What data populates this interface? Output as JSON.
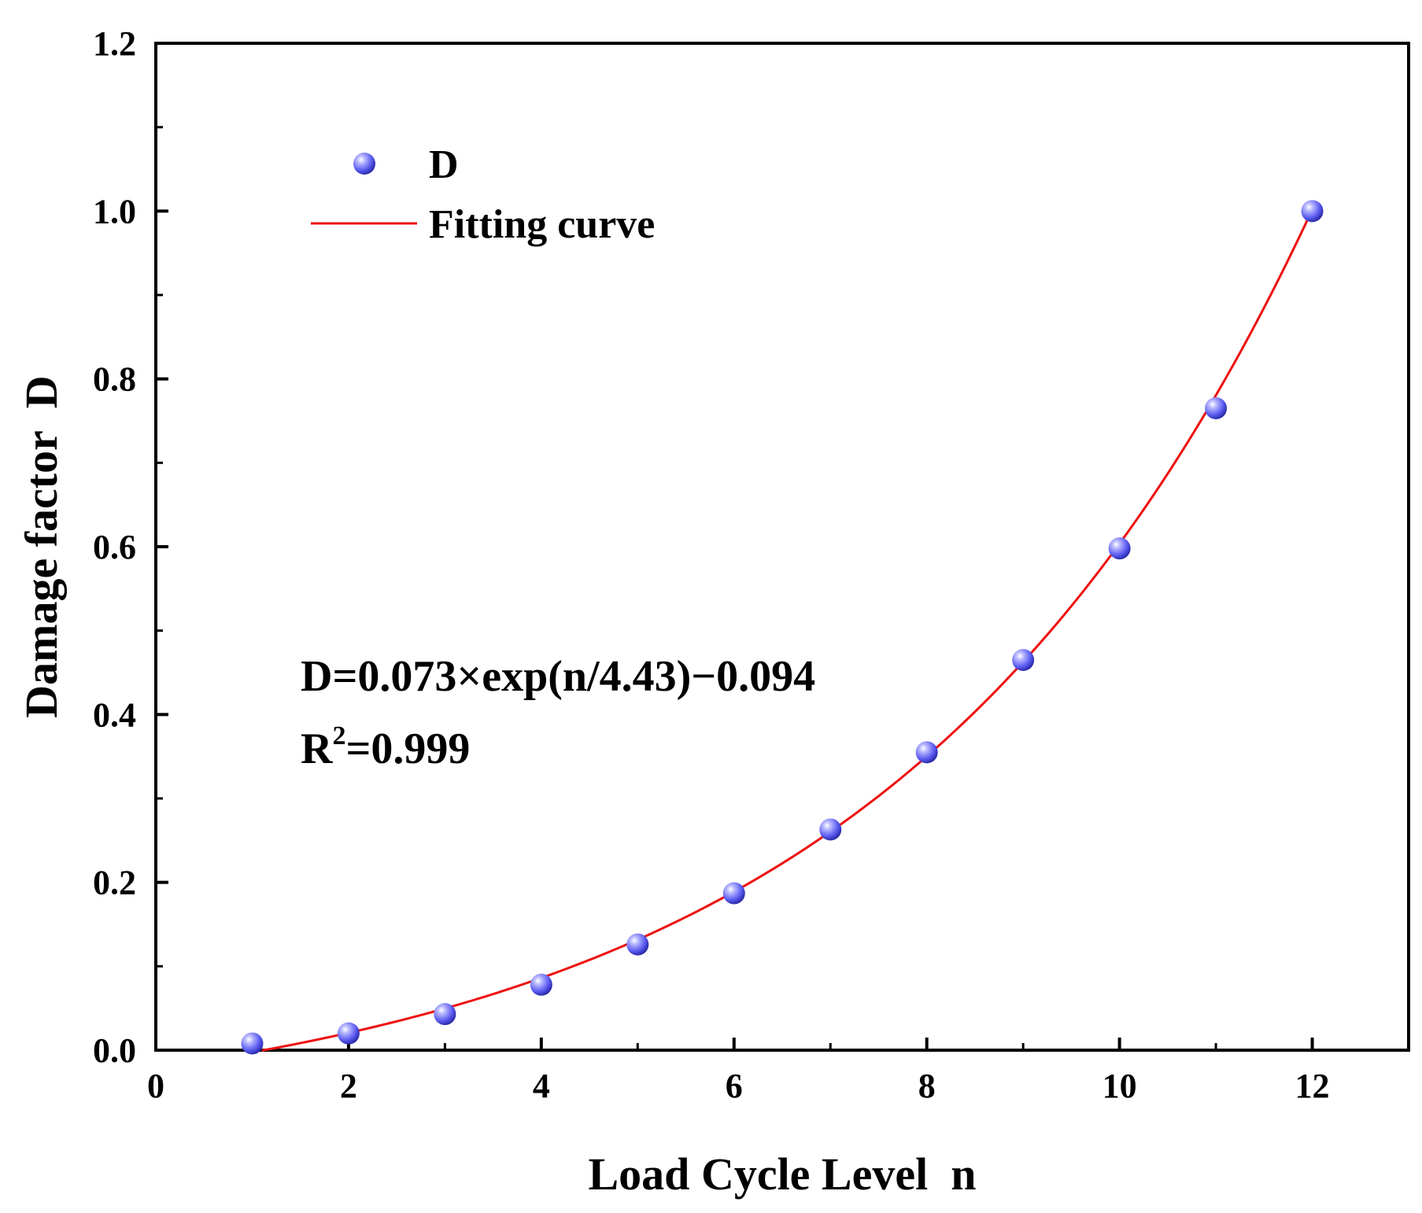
{
  "chart_data": {
    "type": "scatter",
    "xlabel": "Load Cycle Level  n",
    "ylabel": "Damage factor  D",
    "xlim": [
      0,
      13
    ],
    "ylim": [
      0,
      1.2
    ],
    "x_ticks": [
      0,
      2,
      4,
      6,
      8,
      10,
      12
    ],
    "y_ticks": [
      0.0,
      0.2,
      0.4,
      0.6,
      0.8,
      1.0,
      1.2
    ],
    "x_tick_labels": [
      "0",
      "2",
      "4",
      "6",
      "8",
      "10",
      "12"
    ],
    "y_tick_labels": [
      "0.0",
      "0.2",
      "0.4",
      "0.6",
      "0.8",
      "1.0",
      "1.2"
    ],
    "grid": false,
    "legend_position": "top-left",
    "series": [
      {
        "name": "D",
        "kind": "scatter",
        "color": "#5a5af0",
        "x": [
          1,
          2,
          3,
          4,
          5,
          6,
          7,
          8,
          9,
          10,
          11,
          12
        ],
        "y": [
          0.008,
          0.02,
          0.043,
          0.078,
          0.126,
          0.187,
          0.263,
          0.355,
          0.465,
          0.598,
          0.765,
          1.0
        ]
      },
      {
        "name": "Fitting curve",
        "kind": "line",
        "color": "#ee1111",
        "model": {
          "a": 0.073,
          "b": 4.43,
          "c": -0.094
        },
        "x_range": [
          1.1,
          12
        ]
      }
    ],
    "annotations": {
      "equation": "D=0.073×exp(n/4.43)−0.094",
      "r2_prefix": "R",
      "r2_sup": "2",
      "r2_value": "=0.999"
    }
  }
}
